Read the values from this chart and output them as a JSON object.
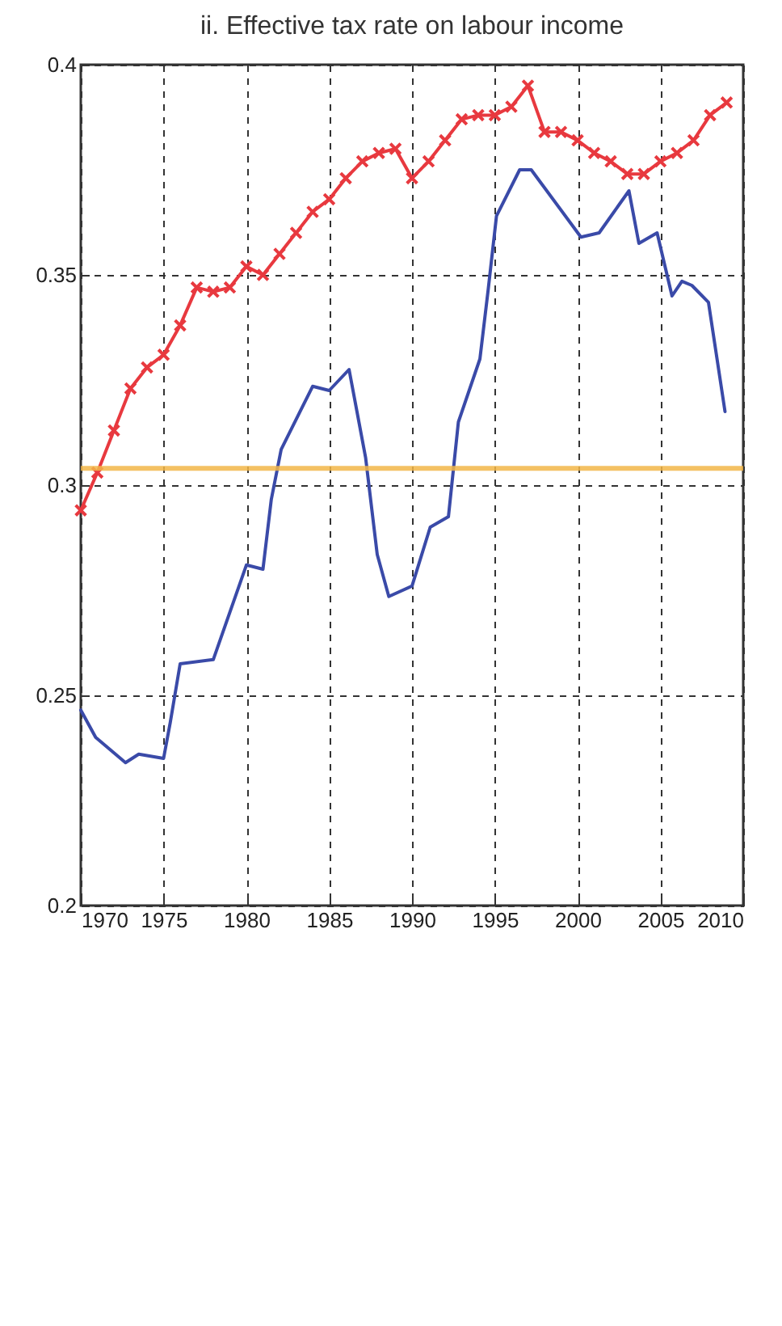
{
  "chart_data": {
    "type": "line",
    "title": "ii. Effective tax rate on labour income",
    "xlim": [
      1970,
      2010
    ],
    "xticks": [
      1970,
      1975,
      1980,
      1985,
      1990,
      1995,
      2000,
      2005,
      2010
    ],
    "ylim": [
      0.2,
      0.4
    ],
    "yticks": [
      0.2,
      0.25,
      0.3,
      0.35,
      0.4
    ],
    "grid": true,
    "ref_lines": [
      {
        "axis": "y",
        "value": 0.304,
        "color": "#f2b648"
      }
    ],
    "series": [
      {
        "color": "#e8393f",
        "marker": "cross",
        "x": [
          1970,
          1971,
          1972,
          1973,
          1974,
          1975,
          1976,
          1977,
          1978,
          1979,
          1980,
          1981,
          1982,
          1983,
          1984,
          1985,
          1986,
          1987,
          1988,
          1989,
          1990,
          1991,
          1992,
          1993,
          1994,
          1995,
          1996,
          1997,
          1998,
          1999,
          2000,
          2001,
          2002,
          2003,
          2004,
          2005,
          2006,
          2007,
          2008,
          2009
        ],
        "values": [
          0.294,
          0.303,
          0.313,
          0.323,
          0.328,
          0.331,
          0.338,
          0.347,
          0.346,
          0.347,
          0.352,
          0.35,
          0.355,
          0.36,
          0.365,
          0.368,
          0.373,
          0.377,
          0.379,
          0.38,
          0.373,
          0.377,
          0.382,
          0.387,
          0.388,
          0.388,
          0.39,
          0.395,
          0.384,
          0.384,
          0.382,
          0.379,
          0.377,
          0.374,
          0.374,
          0.377,
          0.379,
          0.382,
          0.388,
          0.391
        ]
      },
      {
        "color": "#3a4aa8",
        "marker": "none",
        "x": [
          1970,
          1970.9,
          1972.7,
          1973.5,
          1975,
          1975.4,
          1976,
          1978,
          1980,
          1981,
          1981.5,
          1982.1,
          1984,
          1985,
          1986.2,
          1987.2,
          1987.9,
          1988.6,
          1990,
          1991.1,
          1992.2,
          1992.8,
          1994.1,
          1994.6,
          1995.1,
          1996.5,
          1997.2,
          2000.2,
          2001.3,
          2003.1,
          2003.7,
          2004.8,
          2005.7,
          2006.3,
          2006.9,
          2007.9,
          2008.9
        ],
        "values": [
          0.2465,
          0.24,
          0.234,
          0.236,
          0.235,
          0.2435,
          0.2575,
          0.2585,
          0.281,
          0.28,
          0.2965,
          0.3085,
          0.3235,
          0.3225,
          0.3275,
          0.3065,
          0.2835,
          0.2735,
          0.276,
          0.29,
          0.2925,
          0.315,
          0.33,
          0.3465,
          0.364,
          0.375,
          0.375,
          0.359,
          0.36,
          0.37,
          0.3575,
          0.36,
          0.345,
          0.3485,
          0.3475,
          0.3435,
          0.3175
        ]
      }
    ]
  }
}
